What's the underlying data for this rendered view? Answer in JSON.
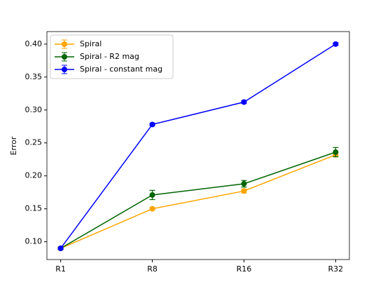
{
  "chart_data": {
    "type": "line",
    "y_label": "Error",
    "categories": [
      "R1",
      "R8",
      "R16",
      "R32"
    ],
    "series": [
      {
        "name": "Spiral",
        "color": "orange",
        "values": [
          0.09,
          0.15,
          0.177,
          0.232
        ],
        "errors": [
          0.002,
          0.002,
          0.003,
          0.003
        ]
      },
      {
        "name": "Spiral - R2 mag",
        "color": "darkgreen",
        "values": [
          0.09,
          0.171,
          0.188,
          0.236
        ],
        "errors": [
          0.002,
          0.007,
          0.005,
          0.007
        ]
      },
      {
        "name": "Spiral - constant mag",
        "color": "blue",
        "values": [
          0.09,
          0.278,
          0.312,
          0.4
        ],
        "errors": [
          0.001,
          0.002,
          0.002,
          0.002
        ]
      }
    ],
    "ylim": [
      0.073,
      0.419
    ],
    "yticks": [
      {
        "value": 0.1,
        "label": "0.10"
      },
      {
        "value": 0.15,
        "label": "0.15"
      },
      {
        "value": 0.2,
        "label": "0.20"
      },
      {
        "value": 0.25,
        "label": "0.25"
      },
      {
        "value": 0.3,
        "label": "0.30"
      },
      {
        "value": 0.35,
        "label": "0.35"
      },
      {
        "value": 0.4,
        "label": "0.40"
      }
    ],
    "legend": "upper left",
    "grid": false
  }
}
